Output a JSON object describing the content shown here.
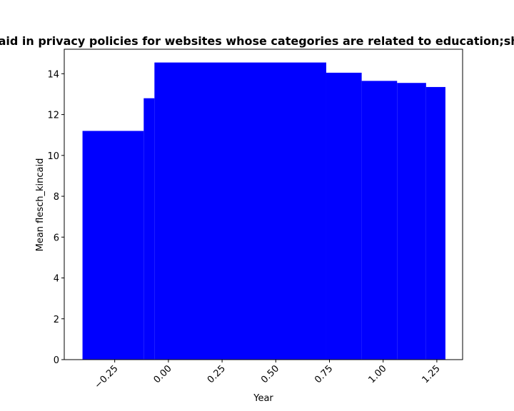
{
  "chart_data": {
    "type": "bar",
    "title": "Mean flesch_kincaid in privacy policies for websites whose categories are related to education;shopping;weapons",
    "xlabel": "Year",
    "ylabel": "Mean flesch_kincaid",
    "colors": {
      "bar": "#0000ff",
      "axis": "#000000",
      "background": "#ffffff"
    },
    "xlim": [
      -0.485,
      1.37
    ],
    "ylim": [
      0,
      15.2
    ],
    "grid": false,
    "x_ticks": [
      -0.25,
      0.0,
      0.25,
      0.5,
      0.75,
      1.0,
      1.25
    ],
    "x_tick_labels": [
      "−0.25",
      "0.00",
      "0.25",
      "0.50",
      "0.75",
      "1.00",
      "1.25"
    ],
    "y_ticks": [
      0,
      2,
      4,
      6,
      8,
      10,
      12,
      14
    ],
    "y_tick_labels": [
      "0",
      "2",
      "4",
      "6",
      "8",
      "10",
      "12",
      "14"
    ],
    "bars": [
      {
        "x_start": -0.4,
        "x_end": -0.115,
        "value": 11.2
      },
      {
        "x_start": -0.115,
        "x_end": -0.065,
        "value": 12.8
      },
      {
        "x_start": -0.065,
        "x_end": 0.735,
        "value": 14.55
      },
      {
        "x_start": 0.735,
        "x_end": 0.9,
        "value": 14.05
      },
      {
        "x_start": 0.9,
        "x_end": 1.065,
        "value": 13.65
      },
      {
        "x_start": 1.065,
        "x_end": 1.2,
        "value": 13.55
      },
      {
        "x_start": 1.2,
        "x_end": 1.29,
        "value": 13.35
      }
    ]
  }
}
